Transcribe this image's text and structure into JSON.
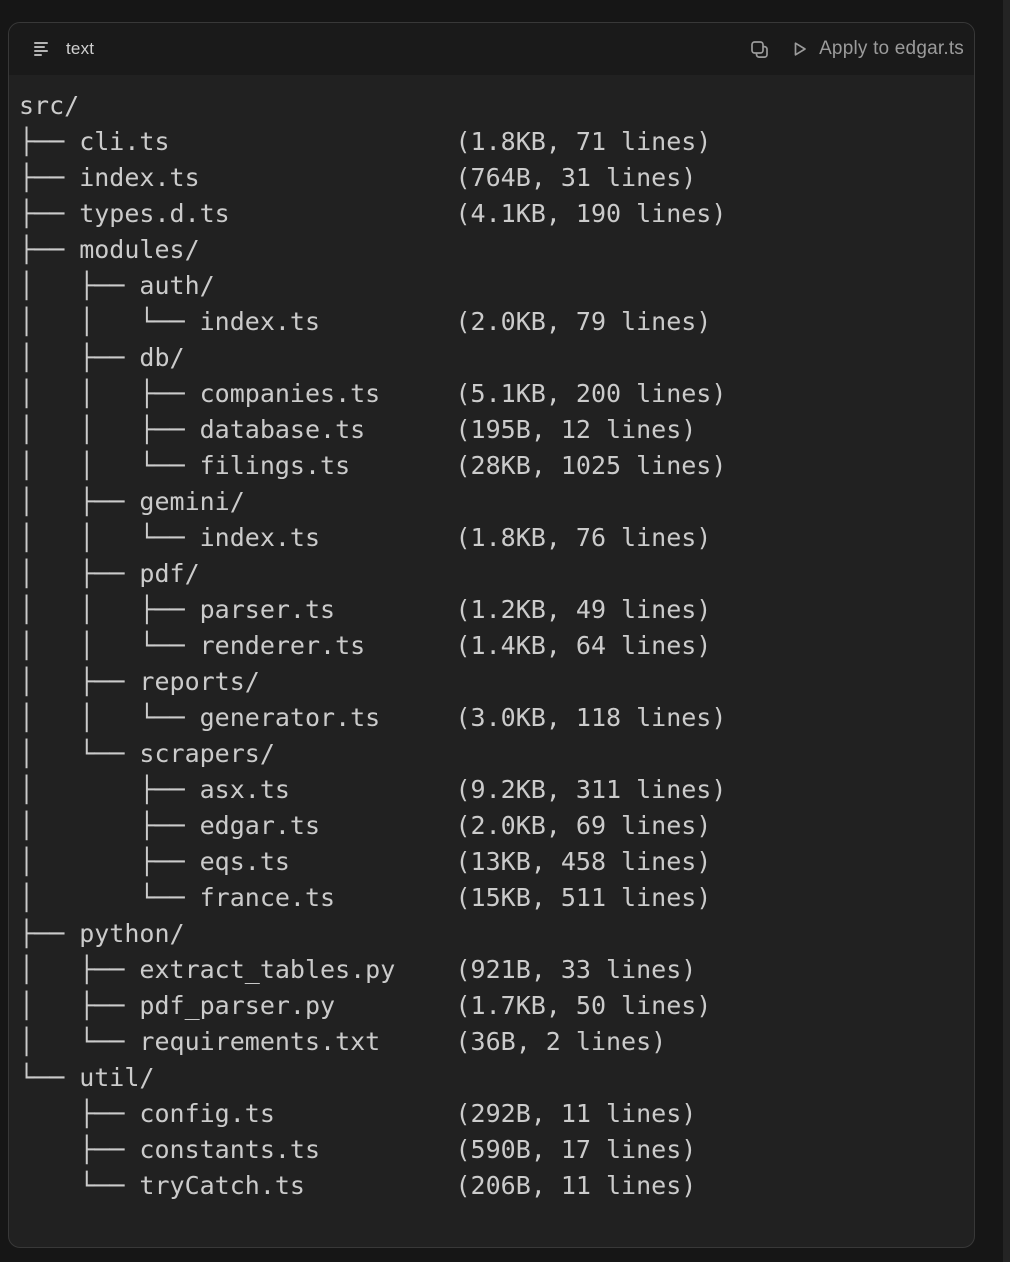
{
  "page": {
    "bg_color": "#161616",
    "scrollbar_color": "#242424"
  },
  "code_block": {
    "border_color": "#383838",
    "header": {
      "bg_color": "#1a1a1a",
      "language_label": "text",
      "apply_label": "Apply to edgar.ts",
      "icons": [
        "text-lines-icon",
        "copy-icon",
        "play-icon"
      ],
      "label_color": "#d0d0d0",
      "action_color": "#9b9b9b"
    },
    "body": {
      "bg_color": "#212121",
      "text_color": "#cbcbcb"
    }
  },
  "file_tree": {
    "size_column": 29,
    "lines": [
      {
        "prefix": "",
        "name": "src/",
        "info": ""
      },
      {
        "prefix": "├── ",
        "name": "cli.ts",
        "info": "(1.8KB, 71 lines)"
      },
      {
        "prefix": "├── ",
        "name": "index.ts",
        "info": "(764B, 31 lines)"
      },
      {
        "prefix": "├── ",
        "name": "types.d.ts",
        "info": "(4.1KB, 190 lines)"
      },
      {
        "prefix": "├── ",
        "name": "modules/",
        "info": ""
      },
      {
        "prefix": "│   ├── ",
        "name": "auth/",
        "info": ""
      },
      {
        "prefix": "│   │   └── ",
        "name": "index.ts",
        "info": "(2.0KB, 79 lines)"
      },
      {
        "prefix": "│   ├── ",
        "name": "db/",
        "info": ""
      },
      {
        "prefix": "│   │   ├── ",
        "name": "companies.ts",
        "info": "(5.1KB, 200 lines)"
      },
      {
        "prefix": "│   │   ├── ",
        "name": "database.ts",
        "info": "(195B, 12 lines)"
      },
      {
        "prefix": "│   │   └── ",
        "name": "filings.ts",
        "info": "(28KB, 1025 lines)"
      },
      {
        "prefix": "│   ├── ",
        "name": "gemini/",
        "info": ""
      },
      {
        "prefix": "│   │   └── ",
        "name": "index.ts",
        "info": "(1.8KB, 76 lines)"
      },
      {
        "prefix": "│   ├── ",
        "name": "pdf/",
        "info": ""
      },
      {
        "prefix": "│   │   ├── ",
        "name": "parser.ts",
        "info": "(1.2KB, 49 lines)"
      },
      {
        "prefix": "│   │   └── ",
        "name": "renderer.ts",
        "info": "(1.4KB, 64 lines)"
      },
      {
        "prefix": "│   ├── ",
        "name": "reports/",
        "info": ""
      },
      {
        "prefix": "│   │   └── ",
        "name": "generator.ts",
        "info": "(3.0KB, 118 lines)"
      },
      {
        "prefix": "│   └── ",
        "name": "scrapers/",
        "info": ""
      },
      {
        "prefix": "│       ├── ",
        "name": "asx.ts",
        "info": "(9.2KB, 311 lines)"
      },
      {
        "prefix": "│       ├── ",
        "name": "edgar.ts",
        "info": "(2.0KB, 69 lines)"
      },
      {
        "prefix": "│       ├── ",
        "name": "eqs.ts",
        "info": "(13KB, 458 lines)"
      },
      {
        "prefix": "│       └── ",
        "name": "france.ts",
        "info": "(15KB, 511 lines)"
      },
      {
        "prefix": "├── ",
        "name": "python/",
        "info": ""
      },
      {
        "prefix": "│   ├── ",
        "name": "extract_tables.py",
        "info": "(921B, 33 lines)"
      },
      {
        "prefix": "│   ├── ",
        "name": "pdf_parser.py",
        "info": "(1.7KB, 50 lines)"
      },
      {
        "prefix": "│   └── ",
        "name": "requirements.txt",
        "info": "(36B, 2 lines)"
      },
      {
        "prefix": "└── ",
        "name": "util/",
        "info": ""
      },
      {
        "prefix": "    ├── ",
        "name": "config.ts",
        "info": "(292B, 11 lines)"
      },
      {
        "prefix": "    ├── ",
        "name": "constants.ts",
        "info": "(590B, 17 lines)"
      },
      {
        "prefix": "    └── ",
        "name": "tryCatch.ts",
        "info": "(206B, 11 lines)"
      }
    ]
  }
}
